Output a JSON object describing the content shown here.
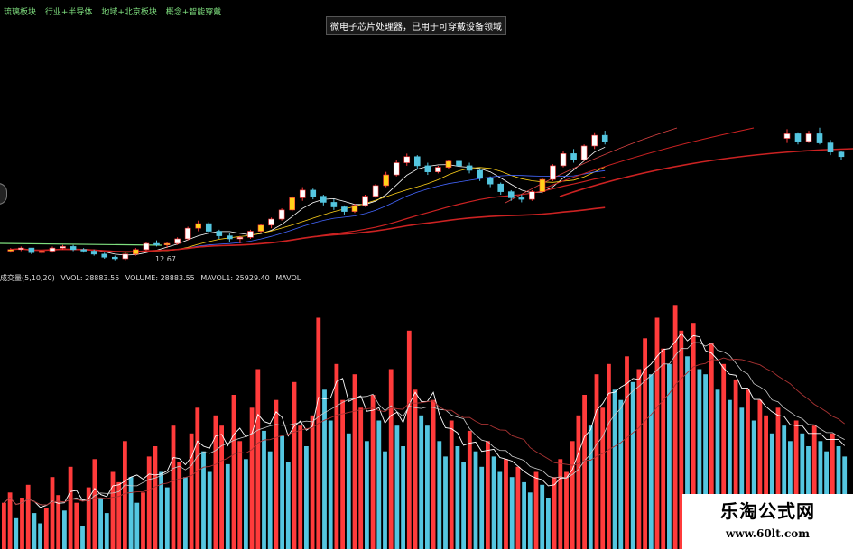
{
  "top_tabs": [
    "琉璃板块",
    "行业+半导体",
    "地域+北京板块",
    "概念+智能穿戴"
  ],
  "tooltip": "微电子芯片处理器，已用于可穿戴设备领域",
  "price_low_label": "12.67",
  "volume_header": {
    "name": "成交量(5,10,20)",
    "vvol": "VVOL: 28883.55",
    "volume": "VOLUME: 28883.55",
    "mavol1": "MAVOL1: 25929.40",
    "mavol2": "MAVOL"
  },
  "watermark": {
    "title": "乐淘公式网",
    "url": "www.60lt.com"
  },
  "colors": {
    "up": "#ff3b3b",
    "down": "#54c6e0",
    "ma_short": "#ffffff",
    "ma_mid": "#ffd21a",
    "ma_long": "#cc2222",
    "ma_blue": "#4466ff",
    "ma_green": "#7fdf7f"
  },
  "chart_data": {
    "type": "candlestick",
    "title": "",
    "price_candles": [
      [
        10.6,
        10.8,
        10.5,
        10.7
      ],
      [
        10.7,
        10.9,
        10.6,
        10.8
      ],
      [
        10.8,
        10.8,
        10.4,
        10.5
      ],
      [
        10.5,
        10.7,
        10.4,
        10.6
      ],
      [
        10.6,
        10.9,
        10.5,
        10.8
      ],
      [
        10.8,
        11.0,
        10.7,
        10.9
      ],
      [
        10.9,
        11.0,
        10.6,
        10.7
      ],
      [
        10.7,
        10.8,
        10.5,
        10.6
      ],
      [
        10.6,
        10.7,
        10.3,
        10.4
      ],
      [
        10.4,
        10.5,
        10.1,
        10.2
      ],
      [
        10.2,
        10.3,
        10.0,
        10.1
      ],
      [
        10.1,
        10.5,
        10.0,
        10.4
      ],
      [
        10.4,
        10.8,
        10.3,
        10.7
      ],
      [
        10.7,
        11.2,
        10.6,
        11.1
      ],
      [
        11.1,
        11.3,
        10.9,
        11.0
      ],
      [
        11.0,
        11.2,
        10.8,
        11.1
      ],
      [
        11.1,
        11.5,
        11.0,
        11.4
      ],
      [
        11.4,
        12.2,
        11.3,
        12.1
      ],
      [
        12.1,
        12.6,
        11.9,
        12.4
      ],
      [
        12.4,
        12.5,
        11.8,
        11.9
      ],
      [
        11.9,
        12.0,
        11.4,
        11.6
      ],
      [
        11.6,
        11.8,
        11.2,
        11.4
      ],
      [
        11.4,
        11.6,
        11.1,
        11.5
      ],
      [
        11.5,
        12.0,
        11.4,
        11.9
      ],
      [
        11.9,
        12.4,
        11.8,
        12.3
      ],
      [
        12.3,
        12.8,
        12.1,
        12.7
      ],
      [
        12.7,
        13.4,
        12.6,
        13.3
      ],
      [
        13.3,
        14.2,
        13.2,
        14.1
      ],
      [
        14.1,
        14.8,
        13.9,
        14.6
      ],
      [
        14.6,
        14.7,
        14.0,
        14.2
      ],
      [
        14.2,
        14.3,
        13.6,
        13.8
      ],
      [
        13.8,
        14.0,
        13.3,
        13.5
      ],
      [
        13.5,
        13.6,
        13.0,
        13.2
      ],
      [
        13.2,
        13.7,
        13.1,
        13.6
      ],
      [
        13.6,
        14.3,
        13.5,
        14.2
      ],
      [
        14.2,
        15.0,
        14.1,
        14.9
      ],
      [
        14.9,
        15.8,
        14.8,
        15.6
      ],
      [
        15.6,
        16.6,
        15.5,
        16.4
      ],
      [
        16.4,
        17.0,
        16.2,
        16.8
      ],
      [
        16.8,
        16.9,
        16.0,
        16.2
      ],
      [
        16.2,
        16.4,
        15.6,
        15.8
      ],
      [
        15.8,
        16.2,
        15.7,
        16.1
      ],
      [
        16.1,
        16.6,
        16.0,
        16.5
      ],
      [
        16.5,
        16.8,
        16.1,
        16.2
      ],
      [
        16.2,
        16.4,
        15.7,
        15.9
      ],
      [
        15.9,
        16.0,
        15.2,
        15.4
      ],
      [
        15.4,
        15.5,
        14.8,
        15.0
      ],
      [
        15.0,
        15.1,
        14.3,
        14.5
      ],
      [
        14.5,
        14.6,
        13.9,
        14.1
      ],
      [
        14.1,
        14.3,
        13.8,
        14.0
      ],
      [
        14.0,
        14.6,
        13.9,
        14.5
      ],
      [
        14.5,
        15.4,
        14.4,
        15.3
      ],
      [
        15.3,
        16.3,
        15.2,
        16.2
      ],
      [
        16.2,
        17.2,
        16.1,
        17.0
      ],
      [
        17.0,
        17.3,
        16.4,
        16.6
      ],
      [
        16.6,
        17.6,
        16.5,
        17.5
      ],
      [
        17.5,
        18.4,
        17.3,
        18.2
      ],
      [
        18.2,
        18.5,
        17.6,
        17.8
      ]
    ],
    "price_candles_right": [
      [
        18.0,
        18.6,
        17.7,
        18.3
      ],
      [
        18.3,
        18.4,
        17.6,
        17.8
      ],
      [
        17.8,
        18.5,
        17.7,
        18.3
      ],
      [
        18.3,
        18.7,
        17.6,
        17.7
      ],
      [
        17.7,
        17.9,
        16.9,
        17.1
      ],
      [
        17.1,
        17.2,
        16.6,
        16.8
      ]
    ],
    "volume_bars": [
      0.18,
      0.22,
      0.12,
      0.2,
      0.25,
      0.14,
      0.1,
      0.16,
      0.28,
      0.21,
      0.15,
      0.32,
      0.18,
      0.09,
      0.24,
      0.35,
      0.2,
      0.14,
      0.3,
      0.26,
      0.42,
      0.28,
      0.18,
      0.22,
      0.36,
      0.4,
      0.3,
      0.24,
      0.48,
      0.34,
      0.28,
      0.45,
      0.55,
      0.38,
      0.3,
      0.52,
      0.48,
      0.33,
      0.6,
      0.42,
      0.35,
      0.55,
      0.7,
      0.46,
      0.38,
      0.58,
      0.44,
      0.34,
      0.65,
      0.48,
      0.4,
      0.52,
      0.9,
      0.62,
      0.5,
      0.72,
      0.58,
      0.45,
      0.68,
      0.55,
      0.42,
      0.6,
      0.5,
      0.38,
      0.7,
      0.48,
      0.4,
      0.85,
      0.62,
      0.52,
      0.48,
      0.58,
      0.42,
      0.36,
      0.5,
      0.4,
      0.34,
      0.46,
      0.38,
      0.32,
      0.42,
      0.36,
      0.3,
      0.35,
      0.28,
      0.32,
      0.26,
      0.22,
      0.3,
      0.25,
      0.2,
      0.28,
      0.35,
      0.3,
      0.42,
      0.52,
      0.6,
      0.48,
      0.68,
      0.55,
      0.72,
      0.62,
      0.58,
      0.75,
      0.65,
      0.7,
      0.82,
      0.68,
      0.9,
      0.78,
      0.72,
      0.95,
      0.85,
      0.75,
      0.88,
      0.7,
      0.68,
      0.8,
      0.62,
      0.72,
      0.58,
      0.66,
      0.55,
      0.62,
      0.5,
      0.58,
      0.52,
      0.45,
      0.55,
      0.48,
      0.42,
      0.5,
      0.45,
      0.4,
      0.48,
      0.42,
      0.38,
      0.45,
      0.4,
      0.36
    ],
    "volume_up_mask": [
      1,
      1,
      0,
      1,
      1,
      0,
      0,
      1,
      1,
      1,
      0,
      1,
      1,
      0,
      1,
      1,
      0,
      0,
      1,
      1,
      1,
      0,
      0,
      1,
      1,
      1,
      0,
      0,
      1,
      1,
      0,
      1,
      1,
      0,
      0,
      1,
      1,
      0,
      1,
      1,
      0,
      1,
      1,
      0,
      0,
      1,
      0,
      0,
      1,
      1,
      0,
      1,
      1,
      0,
      0,
      1,
      1,
      0,
      1,
      1,
      0,
      1,
      0,
      0,
      1,
      0,
      0,
      1,
      1,
      0,
      0,
      1,
      0,
      0,
      1,
      0,
      0,
      1,
      0,
      0,
      1,
      0,
      0,
      1,
      0,
      1,
      0,
      0,
      1,
      0,
      0,
      1,
      1,
      1,
      1,
      1,
      1,
      0,
      1,
      1,
      1,
      0,
      0,
      1,
      0,
      1,
      1,
      0,
      1,
      1,
      0,
      1,
      1,
      0,
      1,
      0,
      0,
      1,
      0,
      1,
      0,
      1,
      0,
      1,
      0,
      1,
      1,
      0,
      1,
      0,
      0,
      1,
      0,
      0,
      1,
      0,
      0,
      1,
      0,
      0
    ]
  }
}
